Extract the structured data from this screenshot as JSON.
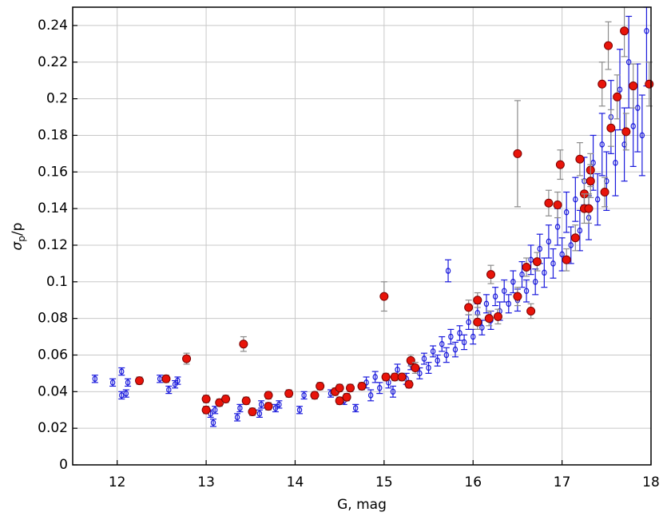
{
  "chart_data": {
    "type": "scatter",
    "xlabel": "G, mag",
    "ylabel": [
      "σ",
      "p",
      "/p"
    ],
    "xlim": [
      11.5,
      18
    ],
    "ylim": [
      0,
      0.25
    ],
    "xticks": [
      12,
      13,
      14,
      15,
      16,
      17,
      18
    ],
    "yticks": [
      0,
      0.02,
      0.04,
      0.06,
      0.08,
      0.1,
      0.12,
      0.14,
      0.16,
      0.18,
      0.2,
      0.22,
      0.24
    ],
    "grid": true,
    "series": [
      {
        "marker": "open",
        "color": "#1a1adc",
        "ecolor": "#1a1adc",
        "x": [
          11.75,
          11.95,
          12.05,
          12.05,
          12.1,
          12.12,
          12.48,
          12.58,
          12.65,
          12.68,
          13.05,
          13.08,
          13.1,
          13.35,
          13.38,
          13.6,
          13.62,
          13.78,
          13.82,
          14.05,
          14.1,
          14.4,
          14.55,
          14.68,
          14.8,
          14.85,
          14.9,
          14.95,
          15.05,
          15.1,
          15.15,
          15.25,
          15.3,
          15.4,
          15.45,
          15.5,
          15.55,
          15.6,
          15.65,
          15.7,
          15.72,
          15.75,
          15.8,
          15.85,
          15.9,
          15.95,
          16.0,
          16.05,
          16.1,
          16.15,
          16.2,
          16.25,
          16.3,
          16.35,
          16.4,
          16.45,
          16.5,
          16.55,
          16.6,
          16.65,
          16.7,
          16.75,
          16.8,
          16.85,
          16.9,
          16.95,
          17.0,
          17.05,
          17.1,
          17.15,
          17.2,
          17.25,
          17.3,
          17.35,
          17.4,
          17.45,
          17.5,
          17.55,
          17.6,
          17.65,
          17.7,
          17.75,
          17.8,
          17.85,
          17.9,
          17.95
        ],
        "values": [
          0.047,
          0.045,
          0.051,
          0.038,
          0.039,
          0.045,
          0.047,
          0.041,
          0.044,
          0.046,
          0.028,
          0.023,
          0.03,
          0.026,
          0.031,
          0.028,
          0.033,
          0.031,
          0.033,
          0.03,
          0.038,
          0.039,
          0.035,
          0.031,
          0.045,
          0.038,
          0.048,
          0.042,
          0.045,
          0.04,
          0.052,
          0.047,
          0.055,
          0.05,
          0.058,
          0.053,
          0.062,
          0.057,
          0.066,
          0.06,
          0.106,
          0.07,
          0.063,
          0.072,
          0.067,
          0.078,
          0.07,
          0.083,
          0.075,
          0.088,
          0.079,
          0.092,
          0.084,
          0.095,
          0.088,
          0.1,
          0.09,
          0.104,
          0.095,
          0.112,
          0.1,
          0.118,
          0.105,
          0.122,
          0.11,
          0.13,
          0.115,
          0.138,
          0.12,
          0.145,
          0.128,
          0.155,
          0.135,
          0.165,
          0.145,
          0.175,
          0.155,
          0.19,
          0.165,
          0.205,
          0.175,
          0.22,
          0.185,
          0.195,
          0.18,
          0.237
        ],
        "errors": [
          0.002,
          0.002,
          0.002,
          0.002,
          0.002,
          0.002,
          0.002,
          0.002,
          0.002,
          0.002,
          0.002,
          0.002,
          0.002,
          0.002,
          0.002,
          0.002,
          0.002,
          0.002,
          0.002,
          0.002,
          0.002,
          0.002,
          0.002,
          0.002,
          0.003,
          0.003,
          0.003,
          0.003,
          0.003,
          0.003,
          0.003,
          0.003,
          0.003,
          0.003,
          0.003,
          0.003,
          0.003,
          0.003,
          0.004,
          0.004,
          0.006,
          0.004,
          0.004,
          0.004,
          0.004,
          0.004,
          0.004,
          0.005,
          0.004,
          0.005,
          0.005,
          0.005,
          0.005,
          0.006,
          0.005,
          0.006,
          0.006,
          0.007,
          0.006,
          0.008,
          0.007,
          0.008,
          0.008,
          0.009,
          0.008,
          0.01,
          0.009,
          0.011,
          0.01,
          0.012,
          0.011,
          0.013,
          0.012,
          0.015,
          0.014,
          0.017,
          0.016,
          0.02,
          0.018,
          0.022,
          0.02,
          0.025,
          0.022,
          0.024,
          0.022,
          0.03
        ]
      },
      {
        "marker": "filled",
        "color": "#e8140a",
        "ecolor": "#8c8c8c",
        "x": [
          12.25,
          12.55,
          12.78,
          13.0,
          13.0,
          13.15,
          13.22,
          13.42,
          13.45,
          13.52,
          13.7,
          13.7,
          13.93,
          14.22,
          14.28,
          14.45,
          14.5,
          14.5,
          14.58,
          14.62,
          14.75,
          15.0,
          15.02,
          15.12,
          15.2,
          15.28,
          15.3,
          15.35,
          15.95,
          16.05,
          16.05,
          16.18,
          16.2,
          16.28,
          16.5,
          16.5,
          16.6,
          16.65,
          16.72,
          16.85,
          16.95,
          16.98,
          17.05,
          17.15,
          17.2,
          17.25,
          17.25,
          17.3,
          17.32,
          17.32,
          17.45,
          17.48,
          17.52,
          17.55,
          17.62,
          17.7,
          17.72,
          17.8,
          17.98
        ],
        "values": [
          0.046,
          0.047,
          0.058,
          0.036,
          0.03,
          0.034,
          0.036,
          0.066,
          0.035,
          0.029,
          0.038,
          0.032,
          0.039,
          0.038,
          0.043,
          0.04,
          0.042,
          0.035,
          0.037,
          0.042,
          0.043,
          0.092,
          0.048,
          0.048,
          0.048,
          0.044,
          0.057,
          0.053,
          0.086,
          0.078,
          0.09,
          0.08,
          0.104,
          0.081,
          0.17,
          0.092,
          0.108,
          0.084,
          0.111,
          0.143,
          0.142,
          0.164,
          0.112,
          0.124,
          0.167,
          0.148,
          0.14,
          0.14,
          0.161,
          0.155,
          0.208,
          0.149,
          0.229,
          0.184,
          0.201,
          0.237,
          0.182,
          0.207,
          0.208
        ],
        "errors": [
          0.002,
          0.002,
          0.003,
          0.002,
          0.002,
          0.002,
          0.002,
          0.004,
          0.002,
          0.002,
          0.002,
          0.002,
          0.002,
          0.002,
          0.002,
          0.002,
          0.002,
          0.002,
          0.002,
          0.002,
          0.002,
          0.008,
          0.002,
          0.002,
          0.002,
          0.002,
          0.003,
          0.003,
          0.004,
          0.004,
          0.004,
          0.004,
          0.005,
          0.004,
          0.029,
          0.005,
          0.005,
          0.004,
          0.005,
          0.007,
          0.007,
          0.008,
          0.006,
          0.007,
          0.009,
          0.008,
          0.008,
          0.008,
          0.009,
          0.009,
          0.012,
          0.008,
          0.013,
          0.01,
          0.012,
          0.014,
          0.01,
          0.012,
          0.012
        ]
      }
    ]
  }
}
